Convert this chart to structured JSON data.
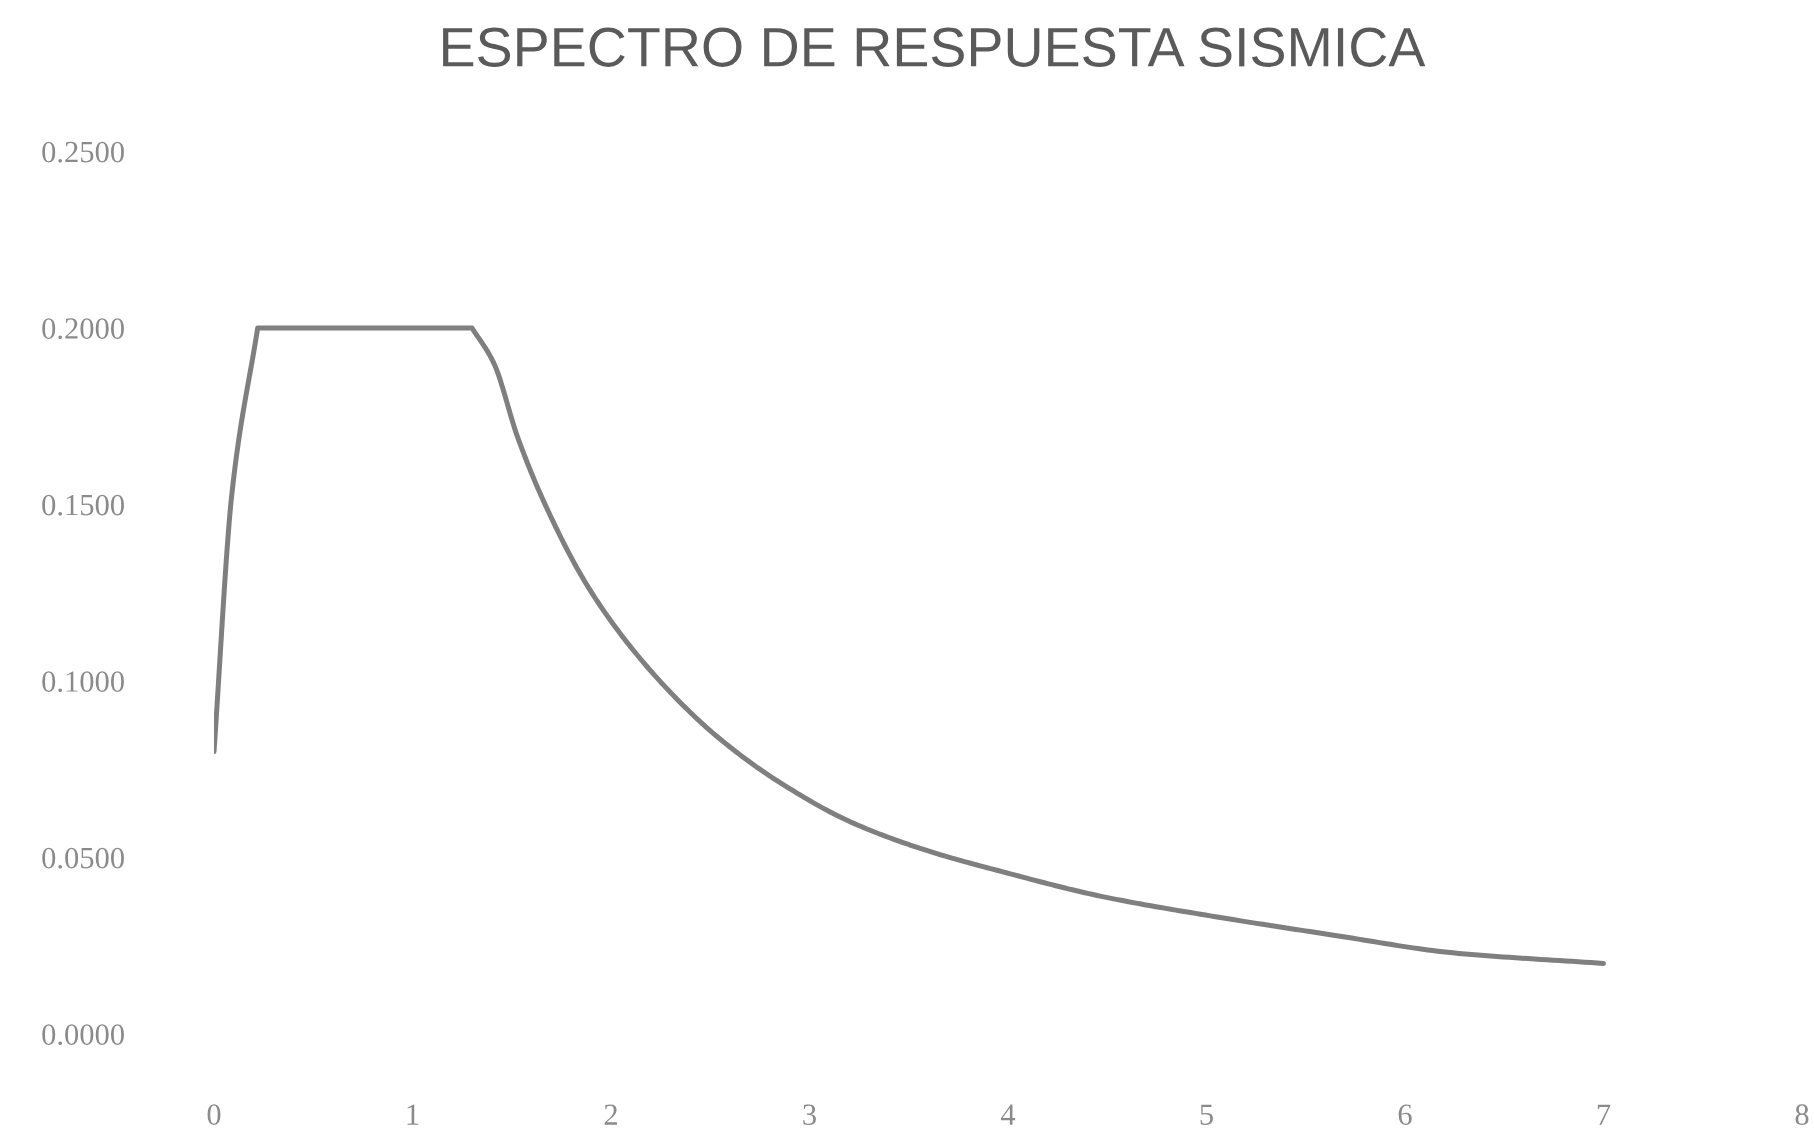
{
  "chart_data": {
    "type": "line",
    "title": "ESPECTRO DE RESPUESTA SISMICA",
    "x": [
      0,
      0.09,
      0.22,
      1.3,
      1.41,
      1.53,
      1.66,
      1.87,
      2.08,
      2.33,
      2.54,
      2.83,
      3.21,
      3.59,
      3.97,
      4.47,
      5.07,
      5.64,
      6.24,
      7.0
    ],
    "series": [
      {
        "color": "#7f7f7f",
        "values": [
          0.08,
          0.153,
          0.2,
          0.2,
          0.19,
          0.169,
          0.151,
          0.128,
          0.111,
          0.095,
          0.084,
          0.072,
          0.06,
          0.052,
          0.046,
          0.039,
          0.033,
          0.028,
          0.023,
          0.02
        ]
      }
    ],
    "xlim": [
      0,
      8
    ],
    "xticks": [
      0,
      1,
      2,
      3,
      4,
      5,
      6,
      7,
      8
    ],
    "ylim": [
      0,
      0.25
    ],
    "yticks": [
      {
        "value": 0,
        "label": "0.0000"
      },
      {
        "value": 0.05,
        "label": "0.0500"
      },
      {
        "value": 0.1,
        "label": "0.1000"
      },
      {
        "value": 0.15,
        "label": "0.1500"
      },
      {
        "value": 0.2,
        "label": "0.2000"
      },
      {
        "value": 0.25,
        "label": "0.2500"
      }
    ],
    "line_style": "solid"
  }
}
